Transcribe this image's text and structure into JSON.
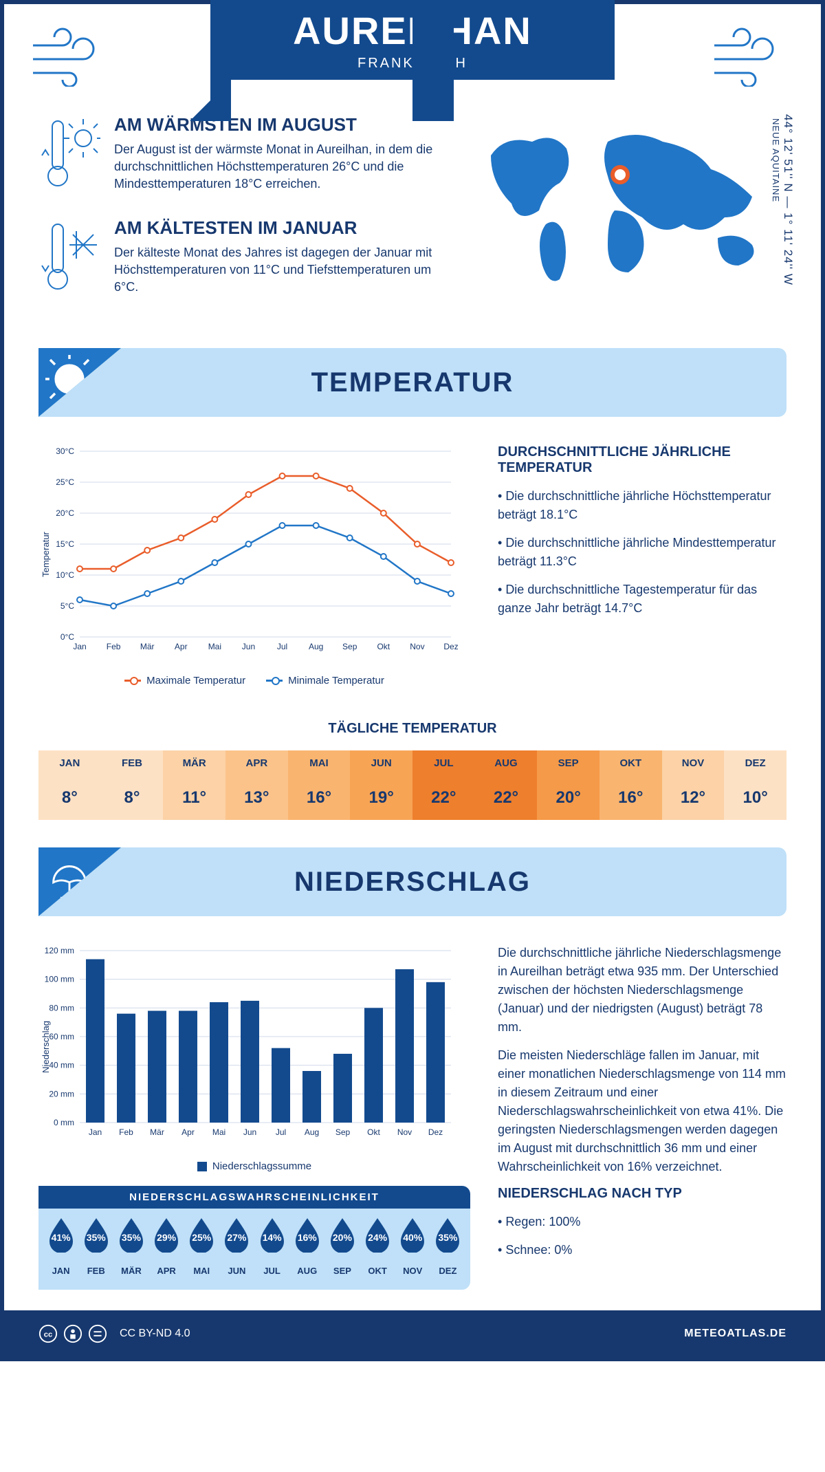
{
  "header": {
    "title": "AUREILHAN",
    "subtitle": "FRANKREICH"
  },
  "coords": {
    "lat": "44° 12' 51'' N",
    "lon": "1° 11' 24'' W",
    "region": "NEUE AQUITAINE"
  },
  "warmest": {
    "title": "AM WÄRMSTEN IM AUGUST",
    "text": "Der August ist der wärmste Monat in Aureilhan, in dem die durchschnittlichen Höchsttemperaturen 26°C und die Mindesttemperaturen 18°C erreichen."
  },
  "coldest": {
    "title": "AM KÄLTESTEN IM JANUAR",
    "text": "Der kälteste Monat des Jahres ist dagegen der Januar mit Höchsttemperaturen von 11°C und Tiefsttemperaturen um 6°C."
  },
  "section_temp": "TEMPERATUR",
  "section_precip": "NIEDERSCHLAG",
  "months": [
    "Jan",
    "Feb",
    "Mär",
    "Apr",
    "Mai",
    "Jun",
    "Jul",
    "Aug",
    "Sep",
    "Okt",
    "Nov",
    "Dez"
  ],
  "months_upper": [
    "JAN",
    "FEB",
    "MÄR",
    "APR",
    "MAI",
    "JUN",
    "JUL",
    "AUG",
    "SEP",
    "OKT",
    "NOV",
    "DEZ"
  ],
  "temp_chart": {
    "type": "line",
    "ylabel": "Temperatur",
    "ylim": [
      0,
      30
    ],
    "ytick_step": 5,
    "ytick_suffix": "°C",
    "max_color": "#e95d2a",
    "min_color": "#2176c7",
    "grid_color": "#d0d8e8",
    "background": "#ffffff",
    "marker": "circle",
    "line_width": 2.5,
    "max_series": [
      11,
      11,
      14,
      16,
      19,
      23,
      26,
      26,
      24,
      20,
      15,
      12
    ],
    "min_series": [
      6,
      5,
      7,
      9,
      12,
      15,
      18,
      18,
      16,
      13,
      9,
      7
    ],
    "legend_max": "Maximale Temperatur",
    "legend_min": "Minimale Temperatur"
  },
  "avg_temp": {
    "heading": "DURCHSCHNITTLICHE JÄHRLICHE TEMPERATUR",
    "bullets": [
      "Die durchschnittliche jährliche Höchsttemperatur beträgt 18.1°C",
      "Die durchschnittliche jährliche Mindesttemperatur beträgt 11.3°C",
      "Die durchschnittliche Tagestemperatur für das ganze Jahr beträgt 14.7°C"
    ]
  },
  "daily_temp": {
    "heading": "TÄGLICHE TEMPERATUR",
    "values": [
      "8°",
      "8°",
      "11°",
      "13°",
      "16°",
      "19°",
      "22°",
      "22°",
      "20°",
      "16°",
      "12°",
      "10°"
    ],
    "colors": [
      "#fde1c4",
      "#fde1c4",
      "#fcd2a6",
      "#fbc38a",
      "#f9b46f",
      "#f7a455",
      "#ee7f2d",
      "#ee7f2d",
      "#f59a48",
      "#f9b46f",
      "#fcd2a6",
      "#fde1c4"
    ]
  },
  "precip_chart": {
    "type": "bar",
    "ylabel": "Niederschlag",
    "ylim": [
      0,
      120
    ],
    "ytick_step": 20,
    "ytick_suffix": " mm",
    "bar_color": "#134a8e",
    "grid_color": "#d0d8e8",
    "legend": "Niederschlagssumme",
    "values": [
      114,
      76,
      78,
      78,
      84,
      85,
      52,
      36,
      48,
      80,
      107,
      98
    ]
  },
  "precip_text": {
    "p1": "Die durchschnittliche jährliche Niederschlagsmenge in Aureilhan beträgt etwa 935 mm. Der Unterschied zwischen der höchsten Niederschlagsmenge (Januar) und der niedrigsten (August) beträgt 78 mm.",
    "p2": "Die meisten Niederschläge fallen im Januar, mit einer monatlichen Niederschlagsmenge von 114 mm in diesem Zeitraum und einer Niederschlagswahrscheinlichkeit von etwa 41%. Die geringsten Niederschlagsmengen werden dagegen im August mit durchschnittlich 36 mm und einer Wahrscheinlichkeit von 16% verzeichnet.",
    "type_heading": "NIEDERSCHLAG NACH TYP",
    "type_rain": "Regen: 100%",
    "type_snow": "Schnee: 0%"
  },
  "prob": {
    "heading": "NIEDERSCHLAGSWAHRSCHEINLICHKEIT",
    "values": [
      "41%",
      "35%",
      "35%",
      "29%",
      "25%",
      "27%",
      "14%",
      "16%",
      "20%",
      "24%",
      "40%",
      "35%"
    ],
    "drop_color": "#134a8e"
  },
  "footer": {
    "license": "CC BY-ND 4.0",
    "brand": "METEOATLAS.DE"
  },
  "colors": {
    "primary": "#17386e",
    "accent_blue": "#2176c7",
    "banner_bg": "#bfe0f8",
    "banner_dark": "#134a8e"
  }
}
